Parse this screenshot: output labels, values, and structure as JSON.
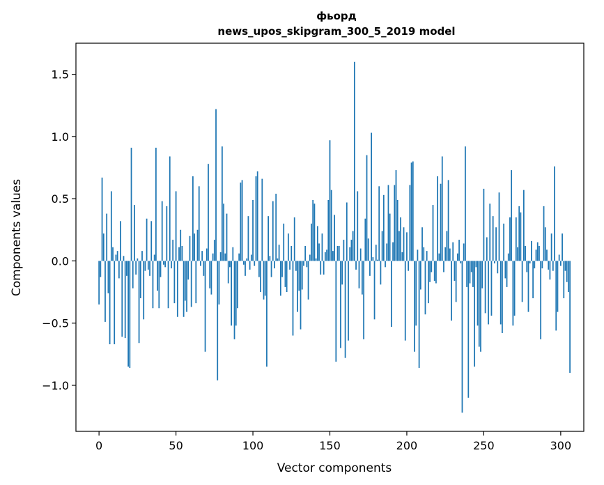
{
  "chart_data": {
    "type": "bar",
    "title": "фьорд",
    "subtitle": "news_upos_skipgram_300_5_2019 model",
    "xlabel": "Vector components",
    "ylabel": "Components values",
    "xlim": [
      -15,
      315
    ],
    "ylim": [
      -1.37,
      1.75
    ],
    "xticks": [
      0,
      50,
      100,
      150,
      200,
      250,
      300
    ],
    "yticks": [
      -1.0,
      -0.5,
      0.0,
      0.5,
      1.0,
      1.5
    ],
    "ytick_labels": [
      "−1.0",
      "−0.5",
      "0.0",
      "0.5",
      "1.0",
      "1.5"
    ],
    "grid": false,
    "bar_color": "#1f77b4",
    "values": [
      -0.35,
      -0.13,
      0.67,
      0.22,
      -0.49,
      0.38,
      -0.26,
      -0.67,
      0.56,
      0.11,
      -0.67,
      0.05,
      0.08,
      -0.14,
      0.32,
      -0.61,
      0.04,
      -0.62,
      -0.12,
      -0.85,
      -0.86,
      0.91,
      -0.22,
      0.45,
      -0.11,
      0.02,
      -0.66,
      -0.3,
      0.08,
      -0.47,
      -0.08,
      0.34,
      -0.07,
      -0.12,
      0.32,
      -0.38,
      0.05,
      0.91,
      -0.24,
      -0.38,
      -0.13,
      0.48,
      -0.03,
      -0.05,
      0.44,
      -0.38,
      0.84,
      -0.06,
      0.17,
      -0.34,
      0.56,
      -0.45,
      0.11,
      0.25,
      0.12,
      -0.45,
      -0.32,
      -0.41,
      -0.15,
      0.2,
      -0.37,
      0.68,
      0.22,
      -0.34,
      0.25,
      0.6,
      -0.04,
      0.08,
      -0.12,
      -0.73,
      0.1,
      0.78,
      -0.22,
      -0.27,
      0.06,
      0.17,
      1.22,
      -0.96,
      -0.35,
      0.07,
      0.92,
      0.46,
      0.06,
      0.38,
      -0.18,
      -0.05,
      -0.52,
      0.11,
      -0.63,
      -0.52,
      -0.38,
      0.06,
      0.63,
      0.65,
      -0.03,
      -0.12,
      0.02,
      0.36,
      -0.07,
      0.05,
      0.49,
      -0.04,
      0.68,
      0.72,
      -0.13,
      -0.25,
      0.66,
      -0.31,
      -0.28,
      -0.85,
      0.36,
      0.04,
      -0.13,
      0.48,
      -0.06,
      0.54,
      0.02,
      0.13,
      -0.28,
      -0.13,
      0.3,
      -0.21,
      -0.25,
      0.22,
      -0.07,
      0.12,
      -0.6,
      0.35,
      -0.08,
      -0.41,
      -0.24,
      -0.55,
      -0.23,
      -0.04,
      0.12,
      -0.05,
      -0.31,
      0.05,
      0.3,
      0.49,
      0.46,
      0.02,
      0.28,
      0.14,
      -0.11,
      0.22,
      -0.11,
      0.07,
      0.09,
      0.49,
      0.97,
      0.57,
      0.08,
      0.37,
      -0.81,
      0.12,
      0.12,
      -0.7,
      -0.19,
      0.17,
      -0.78,
      0.47,
      -0.64,
      0.11,
      0.17,
      0.24,
      1.6,
      -0.07,
      0.56,
      -0.22,
      0.1,
      -0.27,
      -0.63,
      0.34,
      0.85,
      0.18,
      -0.12,
      1.03,
      0.03,
      -0.47,
      0.13,
      0.01,
      0.6,
      -0.19,
      0.24,
      0.53,
      -0.05,
      0.14,
      0.61,
      0.38,
      -0.53,
      0.15,
      0.61,
      0.73,
      0.49,
      0.24,
      0.35,
      0.07,
      0.27,
      -0.64,
      0.23,
      -0.08,
      0.61,
      0.79,
      0.8,
      -0.73,
      -0.52,
      0.09,
      -0.86,
      -0.23,
      0.27,
      0.11,
      -0.43,
      0.08,
      -0.34,
      -0.17,
      -0.09,
      0.45,
      -0.16,
      -0.18,
      0.68,
      0.06,
      0.62,
      0.84,
      -0.09,
      0.11,
      0.24,
      0.65,
      0.1,
      -0.48,
      0.15,
      -0.16,
      -0.33,
      0.06,
      0.17,
      -0.02,
      -1.22,
      0.14,
      0.92,
      -0.21,
      -1.1,
      -0.18,
      -0.09,
      -0.21,
      -0.85,
      -0.05,
      -0.52,
      -0.69,
      -0.73,
      -0.22,
      0.58,
      -0.42,
      0.19,
      -0.51,
      0.46,
      -0.44,
      0.36,
      -0.02,
      0.27,
      -0.1,
      0.55,
      -0.51,
      -0.58,
      0.3,
      -0.14,
      -0.21,
      0.06,
      0.35,
      0.73,
      -0.52,
      -0.44,
      0.35,
      0.11,
      0.44,
      0.39,
      -0.33,
      0.57,
      0.12,
      -0.09,
      -0.41,
      -0.02,
      0.16,
      -0.3,
      -0.06,
      0.09,
      0.15,
      0.12,
      -0.63,
      -0.06,
      0.44,
      0.27,
      0.09,
      -0.07,
      -0.15,
      0.22,
      -0.08,
      0.76,
      -0.56,
      -0.41,
      0.05,
      -0.04,
      0.22,
      -0.3,
      -0.08,
      -0.17,
      -0.25,
      -0.9
    ]
  }
}
